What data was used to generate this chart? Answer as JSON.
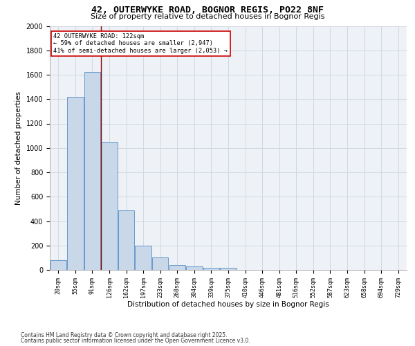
{
  "title_line1": "42, OUTERWYKE ROAD, BOGNOR REGIS, PO22 8NF",
  "title_line2": "Size of property relative to detached houses in Bognor Regis",
  "xlabel": "Distribution of detached houses by size in Bognor Regis",
  "ylabel": "Number of detached properties",
  "bar_labels": [
    "20sqm",
    "55sqm",
    "91sqm",
    "126sqm",
    "162sqm",
    "197sqm",
    "233sqm",
    "268sqm",
    "304sqm",
    "339sqm",
    "375sqm",
    "410sqm",
    "446sqm",
    "481sqm",
    "516sqm",
    "552sqm",
    "587sqm",
    "623sqm",
    "658sqm",
    "694sqm",
    "729sqm"
  ],
  "bar_values": [
    80,
    1420,
    1620,
    1050,
    490,
    200,
    100,
    38,
    28,
    18,
    18,
    0,
    0,
    0,
    0,
    0,
    0,
    0,
    0,
    0,
    0
  ],
  "bar_color": "#c8d8e8",
  "bar_edge_color": "#6699cc",
  "annotation_text": "42 OUTERWYKE ROAD: 122sqm\n← 59% of detached houses are smaller (2,947)\n41% of semi-detached houses are larger (2,053) →",
  "vline_x": 2.5,
  "vline_color": "#8b0000",
  "annotation_box_color": "#ffffff",
  "annotation_box_edge": "#cc0000",
  "ylim": [
    0,
    2000
  ],
  "yticks": [
    0,
    200,
    400,
    600,
    800,
    1000,
    1200,
    1400,
    1600,
    1800,
    2000
  ],
  "grid_color": "#d0d8e0",
  "bg_color": "#eef2f7",
  "footer_line1": "Contains HM Land Registry data © Crown copyright and database right 2025.",
  "footer_line2": "Contains public sector information licensed under the Open Government Licence v3.0."
}
